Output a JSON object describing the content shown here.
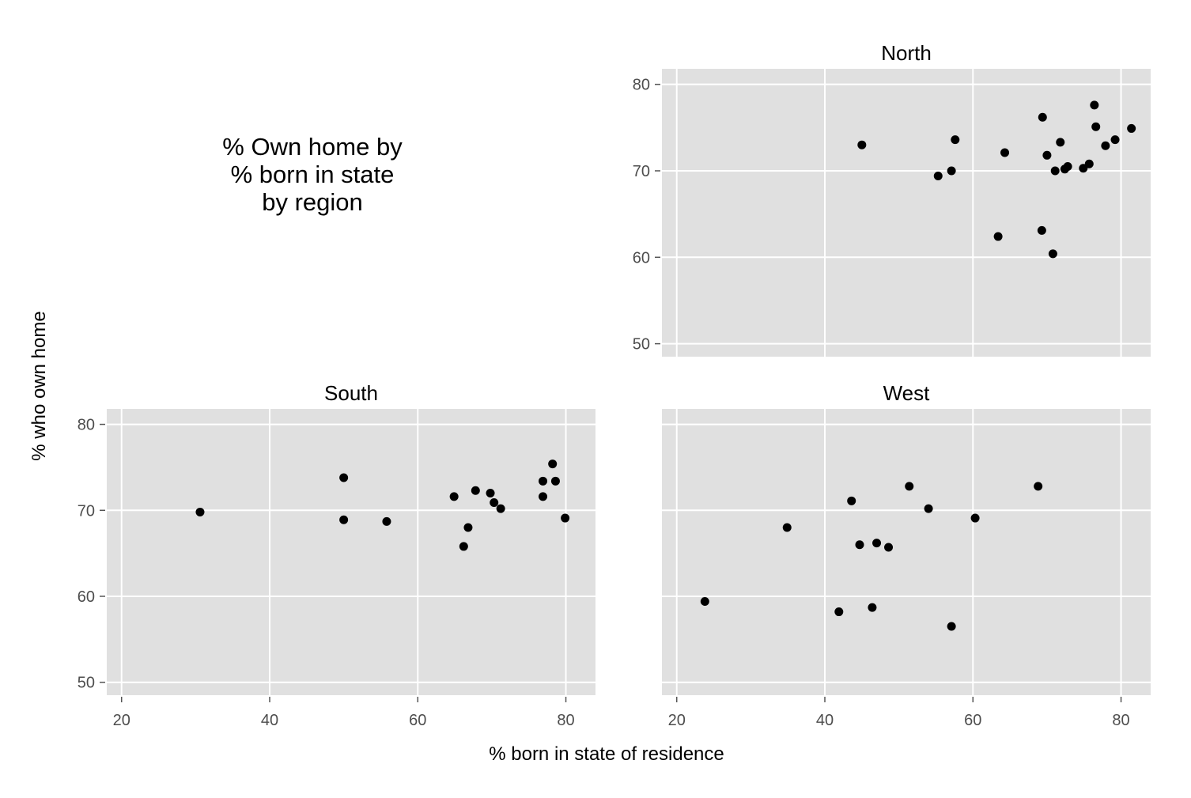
{
  "chart_data": {
    "type": "scatter",
    "title_lines": [
      "% Own home by",
      "% born in state",
      "by region"
    ],
    "xlabel": "% born in state of residence",
    "ylabel": "% who own home",
    "xlim": [
      18,
      84
    ],
    "ylim": [
      48.5,
      81.8
    ],
    "xticks": [
      20,
      40,
      60,
      80
    ],
    "yticks": [
      50,
      60,
      70,
      80
    ],
    "grid": true,
    "panels": [
      {
        "name": "North",
        "show_y_labels": true,
        "show_x_labels": false,
        "points": [
          {
            "x": 45.0,
            "y": 73.0
          },
          {
            "x": 55.3,
            "y": 69.4
          },
          {
            "x": 57.1,
            "y": 70.0
          },
          {
            "x": 57.6,
            "y": 73.6
          },
          {
            "x": 63.4,
            "y": 62.4
          },
          {
            "x": 64.3,
            "y": 72.1
          },
          {
            "x": 69.3,
            "y": 63.1
          },
          {
            "x": 69.4,
            "y": 76.2
          },
          {
            "x": 70.0,
            "y": 71.8
          },
          {
            "x": 70.8,
            "y": 60.4
          },
          {
            "x": 71.1,
            "y": 70.0
          },
          {
            "x": 71.8,
            "y": 73.3
          },
          {
            "x": 72.4,
            "y": 70.2
          },
          {
            "x": 72.8,
            "y": 70.5
          },
          {
            "x": 74.9,
            "y": 70.3
          },
          {
            "x": 75.7,
            "y": 70.8
          },
          {
            "x": 76.4,
            "y": 77.6
          },
          {
            "x": 76.6,
            "y": 75.1
          },
          {
            "x": 77.9,
            "y": 72.9
          },
          {
            "x": 79.2,
            "y": 73.6
          },
          {
            "x": 81.4,
            "y": 74.9
          }
        ]
      },
      {
        "name": "South",
        "show_y_labels": true,
        "show_x_labels": true,
        "points": [
          {
            "x": 30.6,
            "y": 69.8
          },
          {
            "x": 50.0,
            "y": 73.8
          },
          {
            "x": 50.0,
            "y": 68.9
          },
          {
            "x": 55.8,
            "y": 68.7
          },
          {
            "x": 64.9,
            "y": 71.6
          },
          {
            "x": 66.2,
            "y": 65.8
          },
          {
            "x": 66.8,
            "y": 68.0
          },
          {
            "x": 67.8,
            "y": 72.3
          },
          {
            "x": 69.8,
            "y": 72.0
          },
          {
            "x": 70.3,
            "y": 70.9
          },
          {
            "x": 71.2,
            "y": 70.2
          },
          {
            "x": 76.9,
            "y": 73.4
          },
          {
            "x": 76.9,
            "y": 71.6
          },
          {
            "x": 78.2,
            "y": 75.4
          },
          {
            "x": 78.6,
            "y": 73.4
          },
          {
            "x": 79.9,
            "y": 69.1
          }
        ]
      },
      {
        "name": "West",
        "show_y_labels": false,
        "show_x_labels": true,
        "points": [
          {
            "x": 23.8,
            "y": 59.4
          },
          {
            "x": 34.9,
            "y": 68.0
          },
          {
            "x": 41.9,
            "y": 58.2
          },
          {
            "x": 43.6,
            "y": 71.1
          },
          {
            "x": 44.7,
            "y": 66.0
          },
          {
            "x": 46.4,
            "y": 58.7
          },
          {
            "x": 47.0,
            "y": 66.2
          },
          {
            "x": 48.6,
            "y": 65.7
          },
          {
            "x": 51.4,
            "y": 72.8
          },
          {
            "x": 54.0,
            "y": 70.2
          },
          {
            "x": 57.1,
            "y": 56.5
          },
          {
            "x": 60.3,
            "y": 69.1
          },
          {
            "x": 68.8,
            "y": 72.8
          }
        ]
      }
    ]
  }
}
